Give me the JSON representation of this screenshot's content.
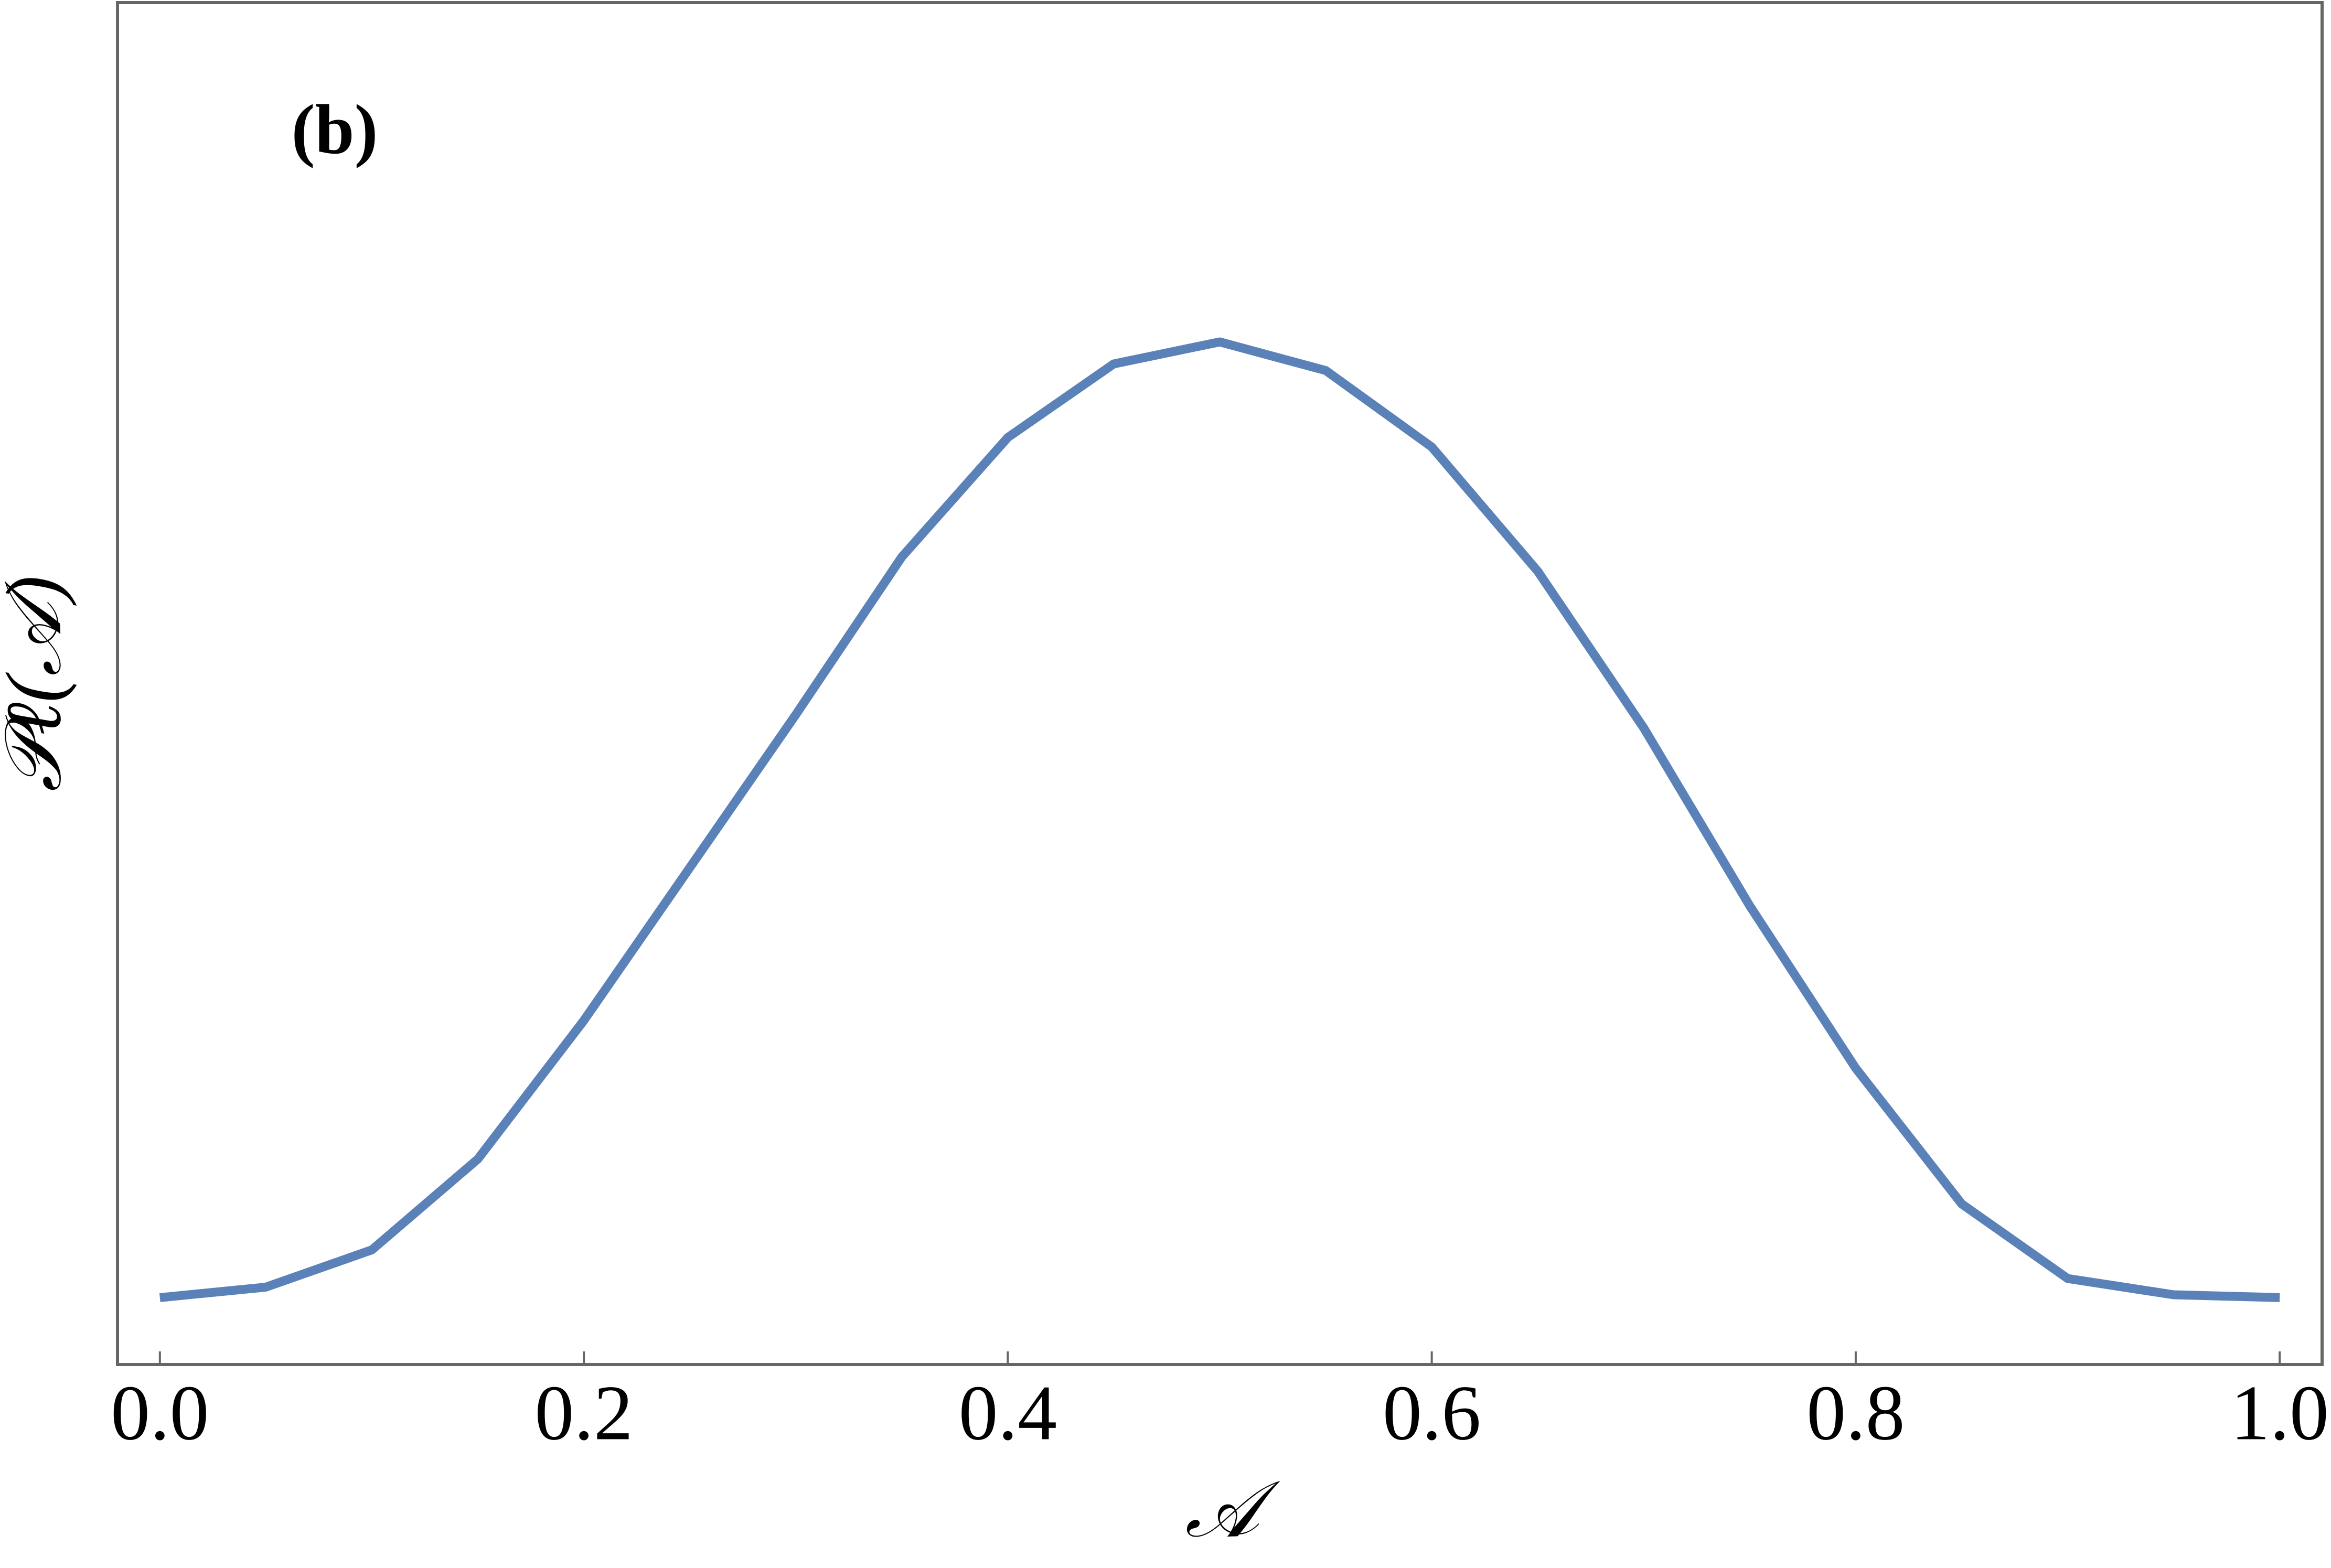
{
  "chart_data": {
    "type": "line",
    "annotation": "(b)",
    "x_label": "𝒜",
    "y_label": "𝒫ℓ(𝒜)",
    "x": [
      0,
      0.05,
      0.1,
      0.15,
      0.2,
      0.25,
      0.3,
      0.35,
      0.4,
      0.45,
      0.5,
      0.55,
      0.6,
      0.65,
      0.7,
      0.75,
      0.8,
      0.85,
      0.9,
      0.95,
      1.0
    ],
    "series": [
      {
        "color": "#5b82b8",
        "values": [
          0,
          0.011,
          0.05,
          0.145,
          0.29,
          0.45,
          0.61,
          0.775,
          0.9,
          0.977,
          1.0,
          0.97,
          0.89,
          0.76,
          0.596,
          0.41,
          0.24,
          0.098,
          0.02,
          0.003,
          0
        ]
      }
    ],
    "xlim": [
      -0.02,
      1.02
    ],
    "ylim": [
      -0.07,
      1.355
    ],
    "xticks": [
      {
        "value": 0,
        "label": "0.0"
      },
      0.2,
      0.4,
      0.6,
      0.8,
      {
        "value": 1.0,
        "label": "1.0"
      }
    ],
    "frame_color": "#666666"
  }
}
